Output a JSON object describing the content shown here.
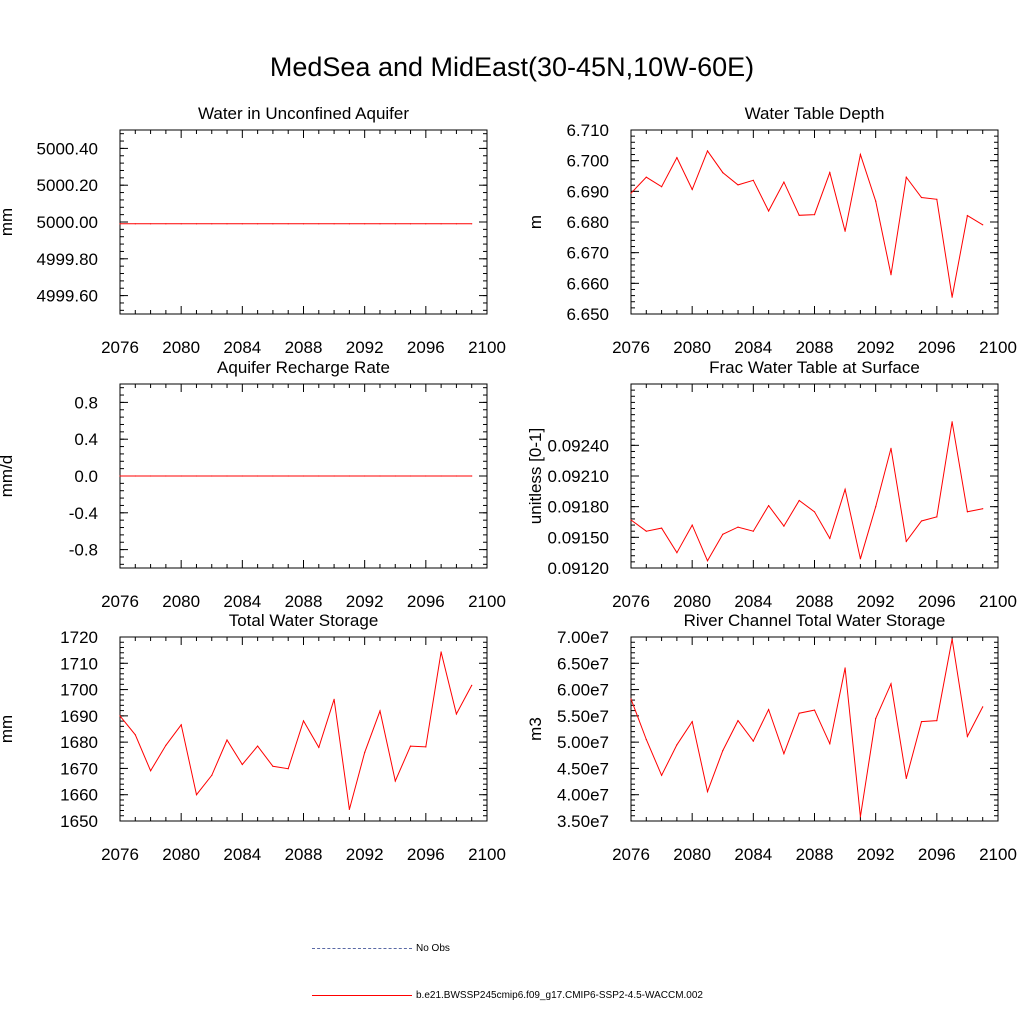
{
  "title": "MedSea and MidEast(30-45N,10W-60E)",
  "colors": {
    "model": "#ff0000",
    "obs": "#5b6aa6",
    "axis": "#000000"
  },
  "legend": {
    "obs_label": "No Obs",
    "model_label": "b.e21.BWSSP245cmip6.f09_g17.CMIP6-SSP2-4.5-WACCM.002"
  },
  "chart_data": [
    {
      "type": "line",
      "title": "Water in Unconfined Aquifer",
      "ylabel": "mm",
      "xlim": [
        2076,
        2100
      ],
      "xticks": [
        "2076",
        "2080",
        "2084",
        "2088",
        "2092",
        "2096",
        "2100"
      ],
      "ylim": [
        4999.5,
        5000.5
      ],
      "yticks": [
        4999.6,
        4999.8,
        5000.0,
        5000.2,
        5000.4
      ],
      "ytick_labels": [
        "4999.60",
        "4999.80",
        "5000.00",
        "5000.20",
        "5000.40"
      ],
      "x": [
        2076,
        2077,
        2078,
        2079,
        2080,
        2081,
        2082,
        2083,
        2084,
        2085,
        2086,
        2087,
        2088,
        2089,
        2090,
        2091,
        2092,
        2093,
        2094,
        2095,
        2096,
        2097,
        2098,
        2099
      ],
      "values": [
        4999.99,
        4999.99,
        4999.99,
        4999.99,
        4999.99,
        4999.99,
        4999.99,
        4999.99,
        4999.99,
        4999.99,
        4999.99,
        4999.99,
        4999.99,
        4999.99,
        4999.99,
        4999.99,
        4999.99,
        4999.99,
        4999.99,
        4999.99,
        4999.99,
        4999.99,
        4999.99,
        4999.99
      ]
    },
    {
      "type": "line",
      "title": "Water Table Depth",
      "ylabel": "m",
      "xlim": [
        2076,
        2100
      ],
      "xticks": [
        "2076",
        "2080",
        "2084",
        "2088",
        "2092",
        "2096",
        "2100"
      ],
      "ylim": [
        6.65,
        6.71
      ],
      "yticks": [
        6.65,
        6.66,
        6.67,
        6.68,
        6.69,
        6.7,
        6.71
      ],
      "ytick_labels": [
        "6.650",
        "6.660",
        "6.670",
        "6.680",
        "6.690",
        "6.700",
        "6.710"
      ],
      "x": [
        2076,
        2077,
        2078,
        2079,
        2080,
        2081,
        2082,
        2083,
        2084,
        2085,
        2086,
        2087,
        2088,
        2089,
        2090,
        2091,
        2092,
        2093,
        2094,
        2095,
        2096,
        2097,
        2098,
        2099
      ],
      "values": [
        6.6894,
        6.6946,
        6.6915,
        6.701,
        6.6906,
        6.7032,
        6.6961,
        6.6921,
        6.6936,
        6.6836,
        6.693,
        6.6822,
        6.6824,
        6.6961,
        6.677,
        6.702,
        6.6868,
        6.6628,
        6.6946,
        6.688,
        6.6874,
        6.6555,
        6.6821,
        6.6791
      ]
    },
    {
      "type": "line",
      "title": "Aquifer Recharge Rate",
      "ylabel": "mm/d",
      "xlim": [
        2076,
        2100
      ],
      "xticks": [
        "2076",
        "2080",
        "2084",
        "2088",
        "2092",
        "2096",
        "2100"
      ],
      "ylim": [
        -1.0,
        1.0
      ],
      "yticks": [
        -0.8,
        -0.4,
        0.0,
        0.4,
        0.8
      ],
      "ytick_labels": [
        "-0.8",
        "-0.4",
        "0.0",
        "0.4",
        "0.8"
      ],
      "x": [
        2076,
        2077,
        2078,
        2079,
        2080,
        2081,
        2082,
        2083,
        2084,
        2085,
        2086,
        2087,
        2088,
        2089,
        2090,
        2091,
        2092,
        2093,
        2094,
        2095,
        2096,
        2097,
        2098,
        2099
      ],
      "values": [
        0,
        0,
        0,
        0,
        0,
        0,
        0,
        0,
        0,
        0,
        0,
        0,
        0,
        0,
        0,
        0,
        0,
        0,
        0,
        0,
        0,
        0,
        0,
        0
      ]
    },
    {
      "type": "line",
      "title": "Frac Water Table at Surface",
      "ylabel": "unitless [0-1]",
      "xlim": [
        2076,
        2100
      ],
      "xticks": [
        "2076",
        "2080",
        "2084",
        "2088",
        "2092",
        "2096",
        "2100"
      ],
      "ylim": [
        0.0912,
        0.093
      ],
      "yticks": [
        0.0912,
        0.0915,
        0.0918,
        0.0921,
        0.0924
      ],
      "ytick_labels": [
        "0.09120",
        "0.09150",
        "0.09180",
        "0.09210",
        "0.09240"
      ],
      "x": [
        2076,
        2077,
        2078,
        2079,
        2080,
        2081,
        2082,
        2083,
        2084,
        2085,
        2086,
        2087,
        2088,
        2089,
        2090,
        2091,
        2092,
        2093,
        2094,
        2095,
        2096,
        2097,
        2098,
        2099
      ],
      "values": [
        0.09167,
        0.09156,
        0.09159,
        0.09135,
        0.09162,
        0.09127,
        0.09153,
        0.0916,
        0.09156,
        0.09181,
        0.09161,
        0.09186,
        0.09175,
        0.09149,
        0.09197,
        0.09129,
        0.0918,
        0.09237,
        0.09146,
        0.09166,
        0.0917,
        0.09263,
        0.09175,
        0.09178
      ]
    },
    {
      "type": "line",
      "title": "Total Water Storage",
      "ylabel": "mm",
      "xlim": [
        2076,
        2100
      ],
      "xticks": [
        "2076",
        "2080",
        "2084",
        "2088",
        "2092",
        "2096",
        "2100"
      ],
      "ylim": [
        1650,
        1720
      ],
      "yticks": [
        1650,
        1660,
        1670,
        1680,
        1690,
        1700,
        1710,
        1720
      ],
      "ytick_labels": [
        "1650",
        "1660",
        "1670",
        "1680",
        "1690",
        "1700",
        "1710",
        "1720"
      ],
      "x": [
        2076,
        2077,
        2078,
        2079,
        2080,
        2081,
        2082,
        2083,
        2084,
        2085,
        2086,
        2087,
        2088,
        2089,
        2090,
        2091,
        2092,
        2093,
        2094,
        2095,
        2096,
        2097,
        2098,
        2099
      ],
      "values": [
        1690.0,
        1682.8,
        1669.1,
        1678.8,
        1686.6,
        1660.0,
        1667.4,
        1680.8,
        1671.5,
        1678.5,
        1670.8,
        1669.9,
        1688.1,
        1678.0,
        1696.3,
        1654.4,
        1676.1,
        1691.9,
        1665.2,
        1678.5,
        1678.2,
        1714.3,
        1690.7,
        1701.6
      ]
    },
    {
      "type": "line",
      "title": "River Channel Total Water Storage",
      "ylabel": "m3",
      "xlim": [
        2076,
        2100
      ],
      "xticks": [
        "2076",
        "2080",
        "2084",
        "2088",
        "2092",
        "2096",
        "2100"
      ],
      "ylim": [
        35000000,
        70000000
      ],
      "yticks": [
        35000000,
        40000000,
        45000000,
        50000000,
        55000000,
        60000000,
        65000000,
        70000000
      ],
      "ytick_labels": [
        "3.50e7",
        "4.00e7",
        "4.50e7",
        "5.00e7",
        "5.50e7",
        "6.00e7",
        "6.50e7",
        "7.00e7"
      ],
      "x": [
        2076,
        2077,
        2078,
        2079,
        2080,
        2081,
        2082,
        2083,
        2084,
        2085,
        2086,
        2087,
        2088,
        2089,
        2090,
        2091,
        2092,
        2093,
        2094,
        2095,
        2096,
        2097,
        2098,
        2099
      ],
      "values": [
        58200000,
        50500000,
        43700000,
        49500000,
        53900000,
        40600000,
        48400000,
        54100000,
        50200000,
        56200000,
        47800000,
        55500000,
        56100000,
        49700000,
        64100000,
        35800000,
        54500000,
        61100000,
        43100000,
        53900000,
        54100000,
        69600000,
        51100000,
        56700000
      ]
    }
  ]
}
